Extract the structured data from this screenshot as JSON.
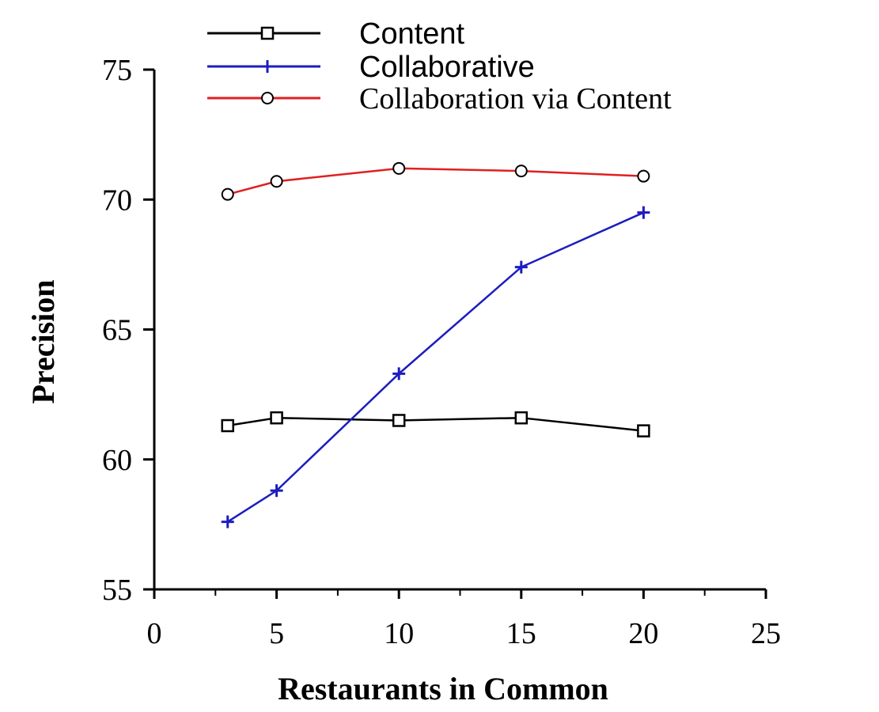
{
  "chart_data": {
    "type": "line",
    "xlabel": "Restaurants in Common",
    "ylabel": "Precision",
    "xlim": [
      0,
      25
    ],
    "ylim": [
      55,
      75
    ],
    "x_ticks": [
      0,
      5,
      10,
      15,
      20,
      25
    ],
    "x_tick_labels": [
      "0",
      "5",
      "10",
      "15",
      "20",
      "25"
    ],
    "x_minor_ticks": [
      2.5,
      7.5,
      12.5,
      17.5,
      22.5
    ],
    "y_ticks": [
      55,
      60,
      65,
      70,
      75
    ],
    "y_tick_labels": [
      "55",
      "60",
      "65",
      "70",
      "75"
    ],
    "grid": false,
    "legend_position": "top",
    "x": [
      3,
      5,
      10,
      15,
      20
    ],
    "series": [
      {
        "name": "Content",
        "values": [
          61.3,
          61.6,
          61.5,
          61.6,
          61.1
        ],
        "color": "#000000",
        "marker": "square"
      },
      {
        "name": "Collaborative",
        "values": [
          57.6,
          58.8,
          63.3,
          67.4,
          69.5
        ],
        "color": "#1c1cc0",
        "marker": "plus"
      },
      {
        "name": "Collaboration via Content",
        "values": [
          70.2,
          70.7,
          71.2,
          71.1,
          70.9
        ],
        "color": "#e02020",
        "marker": "circle"
      }
    ]
  }
}
